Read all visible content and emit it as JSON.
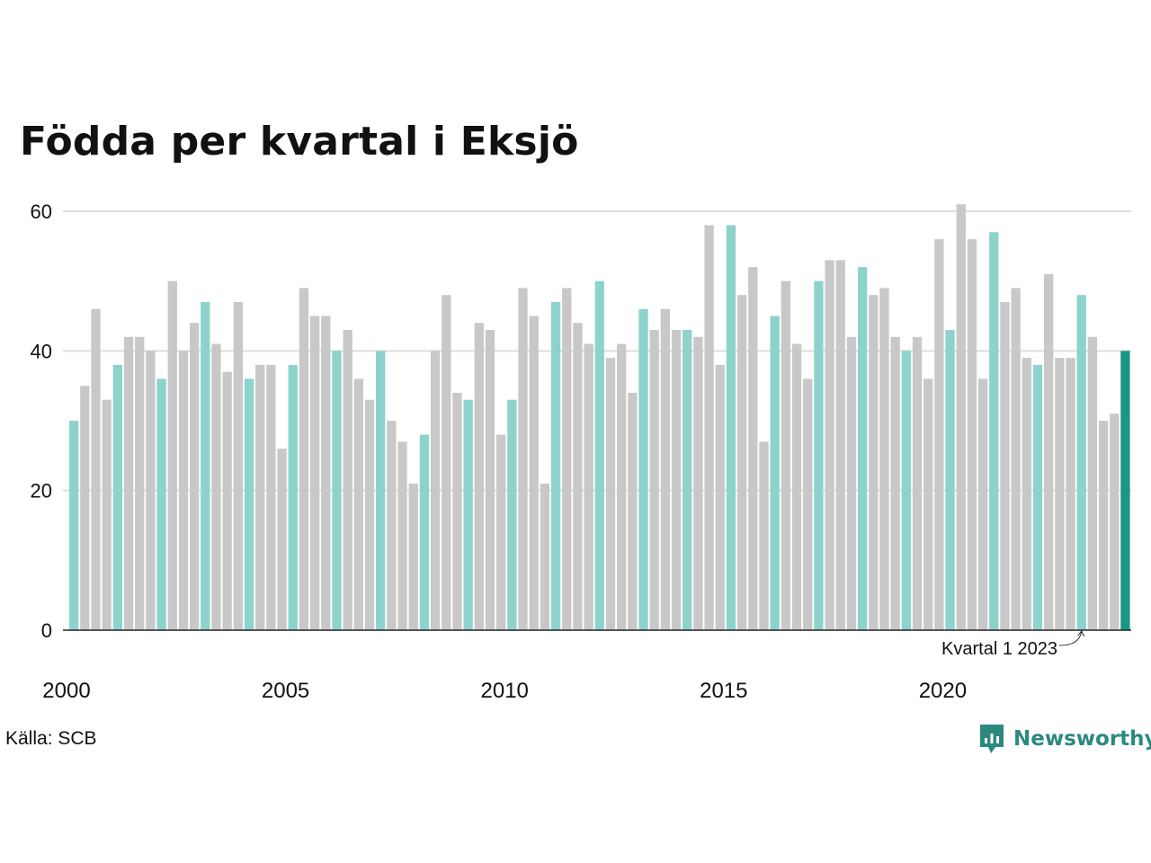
{
  "title": "Födda per kvartal i Eksjö",
  "source": "Källa: SCB",
  "brand": {
    "name": "Newsworthy",
    "icon": "newsworthy-logo-icon"
  },
  "colors": {
    "q1": "#8dd3cc",
    "other": "#c8c8c8",
    "latest": "#1a9683",
    "grid": "#dddddd",
    "axis": "#222222"
  },
  "chart_data": {
    "type": "bar",
    "title": "Födda per kvartal i Eksjö",
    "xlabel": "",
    "ylabel": "",
    "ylim": [
      0,
      60
    ],
    "yticks": [
      0,
      20,
      40,
      60
    ],
    "xticks": [
      "2000",
      "2005",
      "2010",
      "2015",
      "2020"
    ],
    "grid": true,
    "start_year": 2000,
    "annotation": {
      "text": "Kvartal 1 2023",
      "target": "2023 Q1"
    },
    "series": [
      {
        "values": [
          30,
          35,
          46,
          33,
          38,
          42,
          42,
          40,
          36,
          50,
          40,
          44,
          47,
          41,
          37,
          47,
          36,
          38,
          38,
          26,
          38,
          49,
          45,
          45,
          40,
          43,
          36,
          33,
          40,
          30,
          27,
          21,
          28,
          40,
          48,
          34,
          33,
          44,
          43,
          28,
          33,
          49,
          45,
          21,
          47,
          49,
          44,
          41,
          50,
          39,
          41,
          34,
          46,
          43,
          46,
          43,
          43,
          42,
          58,
          38,
          58,
          48,
          52,
          27,
          45,
          50,
          41,
          36,
          50,
          53,
          53,
          42,
          52,
          48,
          49,
          42,
          40,
          42,
          36,
          56,
          43,
          61,
          56,
          36,
          57,
          47,
          49,
          39,
          38,
          51,
          39,
          39,
          48,
          42,
          30,
          31,
          40
        ]
      }
    ]
  }
}
